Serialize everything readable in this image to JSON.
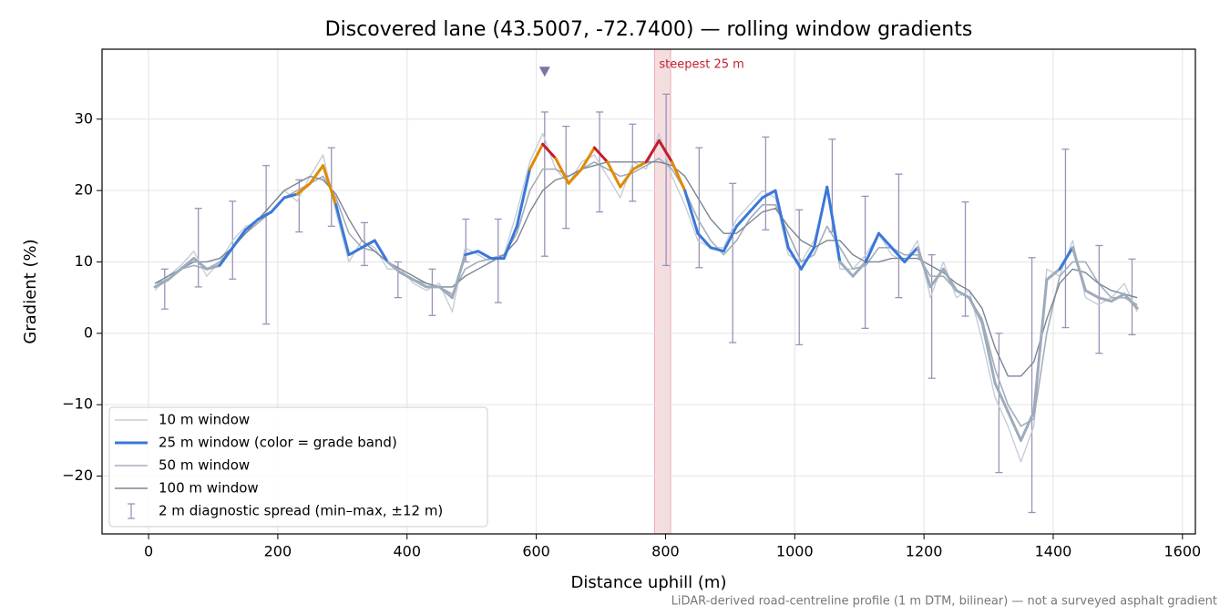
{
  "chart_data": {
    "type": "line",
    "title": "Discovered lane (43.5007, -72.7400) — rolling window gradients",
    "x_label": "Distance uphill (m)",
    "y_label": "Gradient (%)",
    "footnote": "LiDAR-derived road-centreline profile (1 m DTM, bilinear) — not a surveyed asphalt gradient",
    "xlim": [
      -72,
      1620
    ],
    "ylim": [
      -28.1,
      39.8
    ],
    "xticks": [
      0,
      200,
      400,
      600,
      800,
      1000,
      1200,
      1400,
      1600
    ],
    "yticks": [
      {
        "value": -20,
        "label": "−20"
      },
      {
        "value": -10,
        "label": "−10"
      },
      0,
      10,
      20,
      30
    ],
    "grid": true,
    "legend": "lower-left",
    "x": [
      10,
      30,
      50,
      70,
      90,
      110,
      130,
      150,
      170,
      190,
      210,
      230,
      250,
      270,
      290,
      310,
      330,
      350,
      370,
      390,
      410,
      430,
      450,
      470,
      490,
      510,
      530,
      550,
      570,
      590,
      610,
      630,
      650,
      670,
      690,
      710,
      730,
      750,
      770,
      790,
      810,
      830,
      850,
      870,
      890,
      910,
      930,
      950,
      970,
      990,
      1010,
      1030,
      1050,
      1070,
      1090,
      1110,
      1130,
      1150,
      1170,
      1190,
      1210,
      1230,
      1250,
      1270,
      1290,
      1310,
      1330,
      1350,
      1370,
      1390,
      1410,
      1430,
      1450,
      1470,
      1490,
      1510,
      1530
    ],
    "series": [
      {
        "name": "10 m window",
        "color": "#c5ced8",
        "line_width": 1.4,
        "values": [
          6,
          8,
          9.5,
          11.5,
          8,
          10,
          13,
          15,
          15.5,
          18,
          20,
          18.5,
          22,
          25,
          17,
          10,
          13,
          12,
          9,
          9,
          7,
          6,
          7,
          3,
          12,
          11,
          10,
          11,
          17,
          24,
          28,
          23,
          21,
          24,
          25,
          22,
          19,
          24,
          23,
          28,
          22,
          18,
          13,
          12,
          12,
          16,
          18,
          20,
          19,
          11,
          10,
          13,
          20,
          9,
          9,
          11,
          14,
          11,
          10,
          13,
          5,
          10,
          5,
          6,
          -1,
          -9,
          -13,
          -18,
          -13,
          9,
          8,
          13,
          5,
          4,
          5,
          7,
          3
        ]
      },
      {
        "name": "25 m window (color = grade band)",
        "color": "#3a78d8",
        "line_width": 3,
        "banded": true,
        "band_thresholds": [
          10,
          20,
          25
        ],
        "band_colors": [
          "#9eabbb",
          "#3a78d8",
          "#e08a00",
          "#c41e2e"
        ],
        "values": [
          6.5,
          7.5,
          9,
          10.5,
          9,
          9.5,
          12,
          14.5,
          16,
          17,
          19,
          19.5,
          21,
          23.5,
          18,
          11,
          12,
          13,
          10,
          8.5,
          7.5,
          6.5,
          6.5,
          5,
          11,
          11.5,
          10.5,
          10.5,
          15,
          23,
          26.5,
          24.5,
          21,
          23,
          26,
          24,
          20.5,
          23,
          24,
          27,
          24,
          20,
          14,
          12,
          11.5,
          15,
          17,
          19,
          20,
          12,
          9,
          12,
          20.5,
          10,
          8,
          10,
          14,
          12,
          10,
          12,
          6.5,
          9,
          6,
          5,
          1.5,
          -7,
          -11,
          -15,
          -11,
          7.5,
          9,
          12,
          6,
          5,
          4.5,
          5.5,
          3.5
        ]
      },
      {
        "name": "50 m window",
        "color": "#a3adbb",
        "line_width": 1.6,
        "values": [
          7,
          7.5,
          9,
          9.5,
          9,
          10,
          12,
          14,
          15.5,
          17,
          19,
          20,
          21,
          22,
          19,
          14,
          12,
          11.5,
          10,
          8.5,
          7.5,
          7,
          6.5,
          5.5,
          9,
          10,
          10.5,
          11,
          14,
          20,
          23,
          23,
          22,
          23,
          24,
          23,
          22,
          22.5,
          23.5,
          24.5,
          23,
          20,
          16,
          13,
          11,
          13,
          16,
          18,
          18,
          14,
          10,
          11,
          15,
          12,
          9,
          9.5,
          12,
          12,
          11,
          11,
          8,
          8,
          6,
          5,
          2,
          -5,
          -10,
          -13,
          -12,
          0,
          8,
          10,
          10,
          7,
          5,
          5,
          4
        ]
      },
      {
        "name": "100 m window",
        "color": "#7c8594",
        "line_width": 1.4,
        "values": [
          7,
          8,
          9,
          10,
          10,
          10.5,
          12,
          14,
          16,
          18,
          20,
          21,
          22,
          21.5,
          19.5,
          16,
          13,
          11.5,
          10,
          9,
          8,
          7,
          6.5,
          6.5,
          8,
          9,
          10,
          11,
          13,
          17,
          20,
          21.5,
          22,
          23,
          23.5,
          24,
          24,
          24,
          24,
          24,
          23.5,
          22,
          19,
          16,
          14,
          14,
          15.5,
          17,
          17.5,
          15,
          13,
          12,
          13,
          13,
          11,
          10,
          10,
          10.5,
          10.5,
          10.5,
          9.5,
          8.5,
          7,
          6,
          3.5,
          -2,
          -6,
          -6,
          -4,
          2,
          7,
          9,
          8.5,
          7,
          6,
          5.5,
          5
        ]
      }
    ],
    "spread": {
      "name": "2 m diagnostic spread (min–max, ±12 m)",
      "color": "#9a93b8",
      "x": [
        25,
        77,
        130,
        182,
        233,
        283,
        334,
        386,
        439,
        491,
        541,
        613,
        646,
        698,
        749,
        801,
        852,
        904,
        955,
        1007,
        1058,
        1109,
        1161,
        1212,
        1264,
        1316,
        1367,
        1419,
        1471,
        1522
      ],
      "min": [
        3.4,
        6.5,
        7.6,
        1.3,
        14.2,
        15,
        9.5,
        5,
        2.5,
        10,
        4.3,
        10.8,
        14.7,
        17,
        18.5,
        9.5,
        9.2,
        -1.3,
        14.5,
        -1.6,
        14.2,
        0.7,
        5,
        -6.3,
        2.4,
        -19.5,
        -25.1,
        0.8,
        -2.8,
        -0.2
      ],
      "max": [
        9,
        17.5,
        18.5,
        23.5,
        21.5,
        26,
        15.5,
        10,
        9,
        16,
        16,
        31,
        29,
        31,
        29.3,
        33.5,
        26,
        21,
        27.5,
        17.3,
        27.2,
        19.2,
        22.3,
        11,
        18.4,
        0,
        10.6,
        25.8,
        12.3,
        10.4
      ]
    },
    "peak_marker": {
      "x": 613,
      "y": 36.7,
      "color": "#7d72a8"
    },
    "highlight": {
      "range": [
        783,
        808
      ],
      "label": "steepest 25 m",
      "color": "#c41e2e"
    }
  }
}
